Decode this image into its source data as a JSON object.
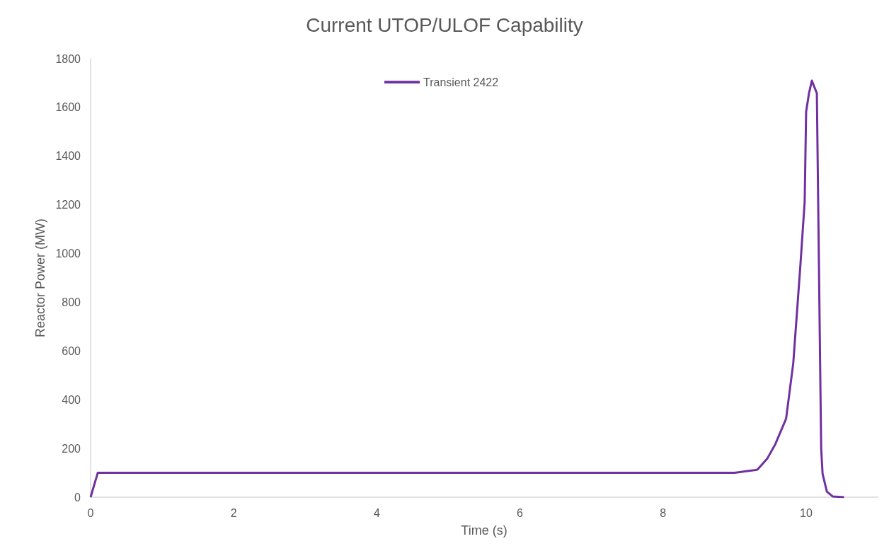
{
  "chart_data": {
    "type": "line",
    "title": "Current UTOP/ULOF Capability",
    "xlabel": "Time (s)",
    "ylabel": "Reactor Power (MW)",
    "xlim": [
      0,
      11
    ],
    "xticks": [
      0,
      2,
      4,
      6,
      8,
      10
    ],
    "ylim": [
      0,
      1800
    ],
    "yticks": [
      0,
      200,
      400,
      600,
      800,
      1000,
      1200,
      1400,
      1600,
      1800
    ],
    "grid": false,
    "legend": "top",
    "marker": "none",
    "line_style": "solid",
    "series": [
      {
        "name": "Transient 2422",
        "color": "#7030a0",
        "x": [
          0,
          0.1,
          9.0,
          9.26,
          9.32,
          9.46,
          9.57,
          9.72,
          9.82,
          9.92,
          9.98,
          10.0,
          10.04,
          10.08,
          10.15,
          10.21,
          10.23,
          10.29,
          10.37,
          10.53
        ],
        "values": [
          0,
          100,
          100,
          110,
          113,
          160,
          218,
          322,
          549,
          952,
          1214,
          1582,
          1658,
          1710,
          1658,
          203,
          96,
          23,
          3,
          0
        ]
      }
    ]
  }
}
